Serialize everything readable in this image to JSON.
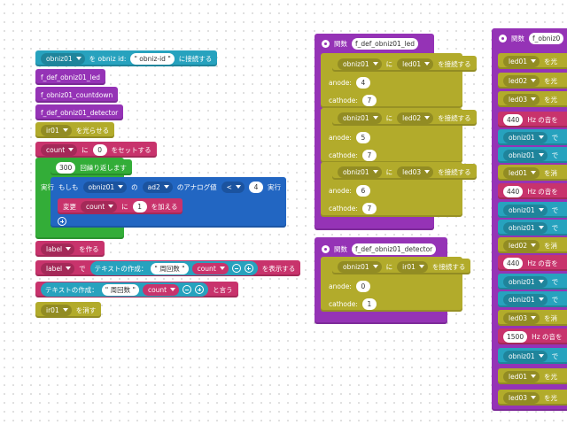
{
  "workspace": {
    "blocks": [
      [
        "obniz01",
        "を obniz id:",
        "\" obniz-id \"",
        "に接続する"
      ],
      [
        "f_def_obniz01_led"
      ],
      [
        "f_obniz01_countdown"
      ],
      [
        "f_def_obniz01_detector"
      ],
      [
        "ir01",
        "を光らせる"
      ],
      [
        "count",
        "に",
        "0",
        "をセットする"
      ],
      [
        "300",
        "回繰り返します"
      ],
      [
        "実行"
      ],
      [
        "もしも",
        "obniz01",
        "の",
        "ad2",
        "のアナログ値",
        "<",
        "4",
        "実行"
      ],
      [
        "変更",
        "count",
        "に",
        "1",
        "を加える"
      ],
      [
        "label",
        "を作る"
      ],
      [
        "label",
        "で",
        "テキストの作成：",
        "\" 周回数 \"",
        "count",
        "を表示する"
      ],
      [
        "テキストの作成：",
        "\" 周回数 \"",
        "count",
        "と言う"
      ],
      [
        "ir01",
        "を消す"
      ],
      [
        "関数",
        "f_def_obniz01_led"
      ],
      [
        "obniz01",
        "に",
        "led01",
        "を接続する"
      ],
      [
        "anode:",
        "4"
      ],
      [
        "cathode:",
        "7"
      ],
      [
        "obniz01",
        "に",
        "led02",
        "を接続する"
      ],
      [
        "anode:",
        "5"
      ],
      [
        "cathode:",
        "7"
      ],
      [
        "obniz01",
        "に",
        "led03",
        "を接続する"
      ],
      [
        "anode:",
        "6"
      ],
      [
        "cathode:",
        "7"
      ],
      [
        "関数",
        "f_def_obniz01_detector"
      ],
      [
        "obniz01",
        "に",
        "ir01",
        "を接続する"
      ],
      [
        "anode:",
        "0"
      ],
      [
        "cathode:",
        "1"
      ],
      [
        "関数",
        "f_obniz0"
      ],
      [
        "led01",
        "を光"
      ],
      [
        "led02",
        "を光"
      ],
      [
        "led03",
        "を光"
      ],
      [
        "440",
        "Hz の音を"
      ],
      [
        "obniz01",
        "で"
      ],
      [
        "obniz01",
        "で"
      ],
      [
        "led01",
        "を消"
      ],
      [
        "440",
        "Hz の音を"
      ],
      [
        "obniz01",
        "で"
      ],
      [
        "obniz01",
        "で"
      ],
      [
        "led02",
        "を消"
      ],
      [
        "440",
        "Hz の音を"
      ],
      [
        "obniz01",
        "で"
      ],
      [
        "obniz01",
        "で"
      ],
      [
        "led03",
        "を消"
      ],
      [
        "1500",
        "Hz の音を"
      ],
      [
        "obniz01",
        "で"
      ],
      [
        "led01",
        "を光"
      ],
      [
        "led03",
        "を光"
      ]
    ]
  }
}
